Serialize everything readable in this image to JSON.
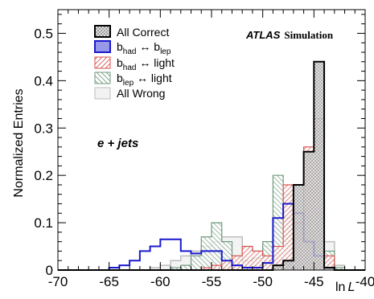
{
  "chart_data": {
    "type": "histogram",
    "ylabel": "Normalized Entries",
    "xlabel_prefix": "ln",
    "xlabel_var": "L",
    "xlim": [
      -70,
      -40
    ],
    "ylim": [
      0,
      0.55
    ],
    "x_ticks": [
      -70,
      -65,
      -60,
      -55,
      -50,
      -45,
      -40
    ],
    "x_tick_labels": [
      "-70",
      "-65",
      "-60",
      "-55",
      "-50",
      "-45",
      "-40"
    ],
    "y_ticks": [
      0,
      0.1,
      0.2,
      0.3,
      0.4,
      0.5
    ],
    "y_tick_labels": [
      "0",
      "0.1",
      "0.2",
      "0.3",
      "0.4",
      "0.5"
    ],
    "bin_edges": [
      -70,
      -69,
      -68,
      -67,
      -66,
      -65,
      -64,
      -63,
      -62,
      -61,
      -60,
      -59,
      -58,
      -57,
      -56,
      -55,
      -54,
      -53,
      -52,
      -51,
      -50,
      -49,
      -48,
      -47,
      -46,
      -45,
      -44,
      -43,
      -42,
      -41,
      -40
    ],
    "legend_position": "top-left",
    "atlas_label": "ATLAS",
    "atlas_sublabel": "Simulation",
    "channel_label": "e + jets",
    "series": [
      {
        "key": "all_wrong",
        "name": "All Wrong",
        "color": "#bdbdbd",
        "values": [
          0,
          0,
          0,
          0,
          0,
          0,
          0,
          0,
          0,
          0.005,
          0.01,
          0.02,
          0.03,
          0.04,
          0.05,
          0.06,
          0.07,
          0.07,
          0.05,
          0.04,
          0.05,
          0.1,
          0.16,
          0.18,
          0.17,
          0.12,
          0.06,
          0.01,
          0,
          0
        ]
      },
      {
        "key": "blep_light",
        "name": "b_lep ↔ light",
        "color": "#6f9a7d",
        "values": [
          0,
          0,
          0,
          0,
          0,
          0,
          0,
          0,
          0,
          0,
          0,
          0.005,
          0.01,
          0.03,
          0.07,
          0.1,
          0.06,
          0.03,
          0.02,
          0.025,
          0.06,
          0.2,
          0.11,
          0.09,
          0.08,
          0.06,
          0.04,
          0.005,
          0,
          0
        ]
      },
      {
        "key": "bhad_light",
        "name": "b_had ↔ light",
        "color": "#d9534f",
        "values": [
          0,
          0,
          0,
          0,
          0,
          0,
          0,
          0,
          0,
          0,
          0,
          0,
          0,
          0,
          0.005,
          0.01,
          0.02,
          0.03,
          0.05,
          0.04,
          0.03,
          0.05,
          0.18,
          0.1,
          0.26,
          0.32,
          0.03,
          0,
          0,
          0
        ]
      },
      {
        "key": "bhad_blep",
        "name": "b_had ↔ b_lep",
        "color": "#1a1acc",
        "values": [
          0,
          0,
          0,
          0,
          0,
          0.005,
          0.01,
          0.02,
          0.04,
          0.05,
          0.065,
          0.065,
          0.04,
          0.035,
          0.04,
          0.04,
          0.02,
          0.01,
          0.005,
          0.005,
          0.015,
          0.11,
          0.14,
          0.12,
          0.06,
          0.03,
          0.005,
          0,
          0,
          0
        ]
      },
      {
        "key": "all_correct",
        "name": "All Correct",
        "color": "#000000",
        "values": [
          0,
          0,
          0,
          0,
          0,
          0,
          0,
          0,
          0,
          0,
          0,
          0,
          0,
          0,
          0,
          0,
          0,
          0,
          0,
          0,
          0,
          0.01,
          0.02,
          0.18,
          0.25,
          0.44,
          0.005,
          0,
          0,
          0
        ]
      }
    ],
    "legend": [
      {
        "series": "all_correct",
        "label": "All Correct"
      },
      {
        "series": "bhad_blep",
        "label_main": "b",
        "label_sub1": "had",
        "label_mid": " ↔ b",
        "label_sub2": "lep"
      },
      {
        "series": "bhad_light",
        "label_main": "b",
        "label_sub1": "had",
        "label_mid": " ↔ light"
      },
      {
        "series": "blep_light",
        "label_main": "b",
        "label_sub1": "lep",
        "label_mid": " ↔ light"
      },
      {
        "series": "all_wrong",
        "label": "All Wrong"
      }
    ]
  }
}
